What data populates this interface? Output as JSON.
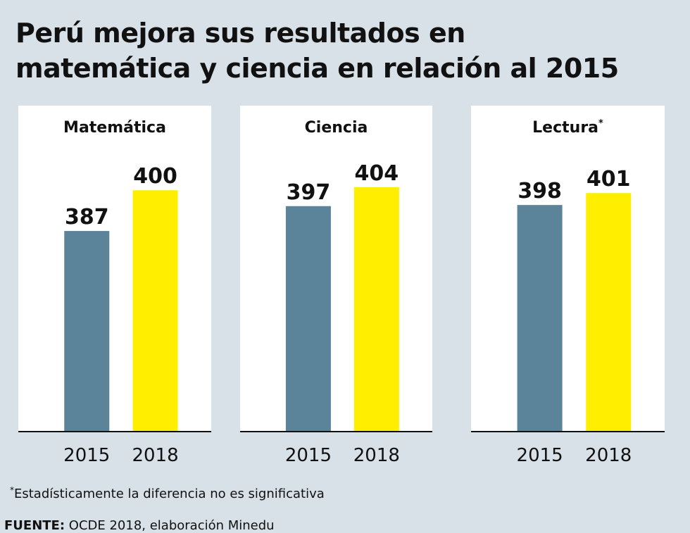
{
  "title_lines": [
    "Perú mejora sus resultados en",
    "matemática y ciencia en relación al 2015"
  ],
  "chart_data": [
    {
      "type": "bar",
      "title": "Matemática",
      "categories": [
        "2015",
        "2018"
      ],
      "values": [
        387,
        400
      ],
      "colors": [
        "#5b8399",
        "#ffee00"
      ],
      "ylim": [
        323,
        427
      ]
    },
    {
      "type": "bar",
      "title": "Ciencia",
      "categories": [
        "2015",
        "2018"
      ],
      "values": [
        397,
        404
      ],
      "colors": [
        "#5b8399",
        "#ffee00"
      ],
      "ylim": [
        314,
        434
      ]
    },
    {
      "type": "bar",
      "title": "Lectura",
      "title_mark": "*",
      "categories": [
        "2015",
        "2018"
      ],
      "values": [
        398,
        401
      ],
      "colors": [
        "#5b8399",
        "#ffee00"
      ],
      "ylim": [
        341,
        423
      ]
    }
  ],
  "note": {
    "mark": "*",
    "text": "Estadísticamente la diferencia no es significativa"
  },
  "source": {
    "label": "FUENTE:",
    "text": "OCDE 2018, elaboración Minedu"
  }
}
